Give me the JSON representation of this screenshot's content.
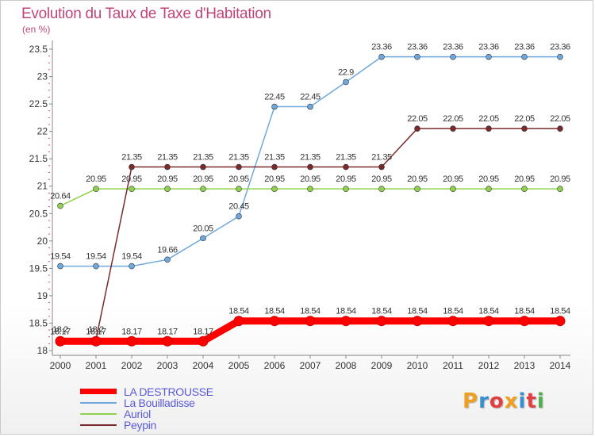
{
  "header": {
    "title": "Evolution du Taux de Taxe d'Habitation",
    "unit": "(en %)"
  },
  "chart_data": {
    "type": "line",
    "title": "Evolution du Taux de Taxe d'Habitation",
    "ylabel": "(en %)",
    "xlabel": "",
    "x": [
      "2000",
      "2001",
      "2002",
      "2003",
      "2004",
      "2005",
      "2006",
      "2007",
      "2008",
      "2009",
      "2010",
      "2011",
      "2012",
      "2013",
      "2014"
    ],
    "ylim": [
      18,
      23.5
    ],
    "yticks": [
      "18",
      "18.5",
      "19",
      "19.5",
      "20",
      "20.5",
      "21",
      "21.5",
      "22",
      "22.5",
      "23",
      "23.5"
    ],
    "grid": false,
    "legend_position": "bottom-left",
    "series": [
      {
        "name": "LA DESTROUSSE",
        "color": "#ff0000",
        "values": [
          18.17,
          18.17,
          18.17,
          18.17,
          18.17,
          18.54,
          18.54,
          18.54,
          18.54,
          18.54,
          18.54,
          18.54,
          18.54,
          18.54,
          18.54
        ],
        "labels": [
          "18.17",
          "18.17",
          "18.17",
          "18.17",
          "18.17",
          "18.54",
          "18.54",
          "18.54",
          "18.54",
          "18.54",
          "18.54",
          "18.54",
          "18.54",
          "18.54",
          "18.54"
        ]
      },
      {
        "name": "La Bouilladisse",
        "color": "#6fa8dc",
        "values": [
          19.54,
          19.54,
          19.54,
          19.66,
          20.05,
          20.45,
          22.45,
          22.45,
          22.9,
          23.36,
          23.36,
          23.36,
          23.36,
          23.36,
          23.36
        ],
        "labels": [
          "19.54",
          "19.54",
          "19.54",
          "19.66",
          "20.05",
          "20.45",
          "22.45",
          "22.45",
          "22.9",
          "23.36",
          "23.36",
          "23.36",
          "23.36",
          "23.36",
          "23.36"
        ]
      },
      {
        "name": "Auriol",
        "color": "#8fd14f",
        "values": [
          20.64,
          20.95,
          20.95,
          20.95,
          20.95,
          20.95,
          20.95,
          20.95,
          20.95,
          20.95,
          20.95,
          20.95,
          20.95,
          20.95,
          20.95
        ],
        "labels": [
          "20.64",
          "20.95",
          "20.95",
          "20.95",
          "20.95",
          "20.95",
          "20.95",
          "20.95",
          "20.95",
          "20.95",
          "20.95",
          "20.95",
          "20.95",
          "20.95",
          "20.95"
        ]
      },
      {
        "name": "Peypin",
        "color": "#7a2a2a",
        "values": [
          18.2,
          18.2,
          21.35,
          21.35,
          21.35,
          21.35,
          21.35,
          21.35,
          21.35,
          21.35,
          22.05,
          22.05,
          22.05,
          22.05,
          22.05
        ],
        "labels": [
          "18.2",
          "18.2",
          "21.35",
          "21.35",
          "21.35",
          "21.35",
          "21.35",
          "21.35",
          "21.35",
          "21.35",
          "22.05",
          "22.05",
          "22.05",
          "22.05",
          "22.05"
        ]
      }
    ]
  },
  "legend": {
    "items": [
      {
        "label": "LA DESTROUSSE",
        "color": "#ff0000"
      },
      {
        "label": "La Bouilladisse",
        "color": "#6fa8dc"
      },
      {
        "label": "Auriol",
        "color": "#8fd14f"
      },
      {
        "label": "Peypin",
        "color": "#7a2a2a"
      }
    ]
  },
  "logo": {
    "letters": [
      "P",
      "r",
      "o",
      "x",
      "i",
      "t",
      "i"
    ],
    "colors": [
      "#f0a020",
      "#3a8fd0",
      "#e04040",
      "#f0a020",
      "#3a8fd0",
      "#e04040",
      "#50b050"
    ]
  }
}
